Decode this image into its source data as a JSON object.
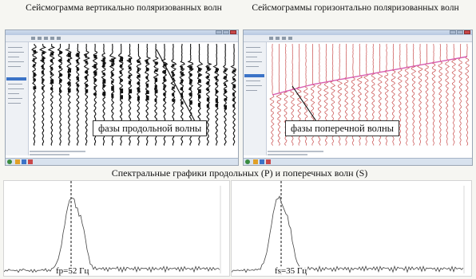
{
  "captions": {
    "vertical_seismogram": "Сейсмограмма вертикально поляризованных волн",
    "horizontal_seismograms": "Сейсмограммы горизонтально поляризованных волн",
    "spectral_graphs": "Спектральные графики продольных (Р) и поперечных волн (S)"
  },
  "labels": {
    "p_wave_phases": "фазы продольной волны",
    "s_wave_phases": "фазы поперечной волны"
  },
  "spectra": {
    "p_frequency": "fp=52 Гц",
    "s_frequency": "fs=35 Гц"
  },
  "colors": {
    "vertical_traces": "#111111",
    "horizontal_traces": "#c84b4b",
    "pick_line": "#d85fb0",
    "spectrum_line": "#444444",
    "window_frame": "#9aa6b4"
  },
  "icons": {
    "close": "close-icon",
    "start": "start-icon"
  }
}
